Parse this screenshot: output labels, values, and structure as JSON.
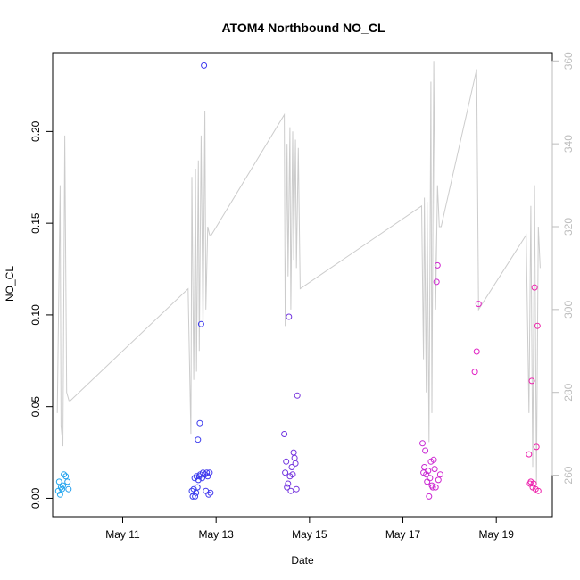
{
  "chart_data": {
    "type": "scatter",
    "title": "ATOM4 Northbound NO_CL",
    "xlabel": "Date",
    "ylabel": "NO_CL",
    "y2label": "",
    "x_tick_labels": [
      "May 11",
      "May 13",
      "May 15",
      "May 17",
      "May 19"
    ],
    "x_tick_dates": [
      11,
      13,
      15,
      17,
      19
    ],
    "x_range_days": [
      9.5,
      20.2
    ],
    "y_range": [
      -0.01,
      0.243
    ],
    "y_ticks": [
      0.0,
      0.05,
      0.1,
      0.15,
      0.2
    ],
    "y_tick_labels": [
      "0.00",
      "0.05",
      "0.10",
      "0.15",
      "0.20"
    ],
    "y2_range": [
      250,
      362
    ],
    "y2_ticks": [
      260,
      280,
      300,
      320,
      340,
      360
    ],
    "y2_tick_labels": [
      "260",
      "280",
      "300",
      "320",
      "340",
      "360"
    ],
    "grid": false,
    "colors": {
      "line": "#cccccc",
      "axis": "#000000",
      "right_axis": "#bdbdbd",
      "point_gradient": [
        "#22aaee",
        "#2255ee",
        "#4433ee",
        "#7733dd",
        "#aa33dd",
        "#dd22cc",
        "#ee22aa"
      ]
    },
    "series": [
      {
        "type": "points",
        "x_day": [
          9.62,
          9.64,
          9.66,
          9.68,
          9.7,
          9.72,
          9.74,
          9.78,
          9.82,
          9.84,
          12.48,
          12.5,
          12.52,
          12.54,
          12.55,
          12.57,
          12.58,
          12.6,
          12.61,
          12.62,
          12.64,
          12.65,
          12.66,
          12.68,
          12.7,
          12.72,
          12.74,
          12.76,
          12.78,
          12.8,
          12.82,
          12.84,
          12.86,
          12.88,
          14.46,
          14.48,
          14.5,
          14.52,
          14.54,
          14.56,
          14.58,
          14.6,
          14.62,
          14.64,
          14.66,
          14.68,
          14.7,
          14.72,
          14.74,
          17.42,
          17.44,
          17.46,
          17.48,
          17.5,
          17.52,
          17.54,
          17.56,
          17.58,
          17.6,
          17.62,
          17.64,
          17.66,
          17.68,
          17.7,
          17.72,
          17.74,
          17.76,
          17.8,
          18.54,
          18.58,
          18.62,
          19.7,
          19.72,
          19.74,
          19.76,
          19.78,
          19.8,
          19.82,
          19.84,
          19.86,
          19.88,
          19.9
        ],
        "y": [
          0.004,
          0.009,
          0.002,
          0.006,
          0.005,
          0.007,
          0.013,
          0.012,
          0.009,
          0.005,
          0.004,
          0.001,
          0.005,
          0.011,
          0.001,
          0.003,
          0.012,
          0.006,
          0.032,
          0.01,
          0.012,
          0.041,
          0.013,
          0.095,
          0.011,
          0.014,
          0.236,
          0.013,
          0.004,
          0.014,
          0.012,
          0.002,
          0.014,
          0.003,
          0.035,
          0.014,
          0.02,
          0.006,
          0.008,
          0.099,
          0.012,
          0.004,
          0.017,
          0.013,
          0.025,
          0.022,
          0.019,
          0.005,
          0.056,
          0.03,
          0.014,
          0.017,
          0.026,
          0.013,
          0.009,
          0.015,
          0.001,
          0.011,
          0.02,
          0.007,
          0.006,
          0.021,
          0.016,
          0.006,
          0.118,
          0.127,
          0.01,
          0.013,
          0.069,
          0.08,
          0.106,
          0.024,
          0.008,
          0.009,
          0.064,
          0.006,
          0.008,
          0.115,
          0.005,
          0.028,
          0.094,
          0.004
        ]
      },
      {
        "type": "line",
        "axis": "right",
        "x_day": [
          9.6,
          9.66,
          9.68,
          9.72,
          9.76,
          9.8,
          9.85,
          9.88,
          12.4,
          12.46,
          12.48,
          12.52,
          12.56,
          12.58,
          12.62,
          12.64,
          12.68,
          12.72,
          12.76,
          12.78,
          12.82,
          12.86,
          12.9,
          14.46,
          14.48,
          14.52,
          14.54,
          14.58,
          14.6,
          14.64,
          14.66,
          14.7,
          14.72,
          14.76,
          14.8,
          17.4,
          17.44,
          17.46,
          17.5,
          17.52,
          17.56,
          17.6,
          17.62,
          17.66,
          17.7,
          17.74,
          17.78,
          17.82,
          18.58,
          18.62,
          19.64,
          19.7,
          19.74,
          19.78,
          19.82,
          19.86,
          19.9,
          19.94
        ],
        "y": [
          275,
          330,
          272,
          267,
          342,
          280,
          278,
          278,
          305,
          270,
          332,
          283,
          334,
          285,
          336,
          290,
          342,
          295,
          348,
          300,
          320,
          318,
          318,
          347,
          296,
          340,
          308,
          344,
          300,
          343,
          312,
          341,
          310,
          339,
          305,
          325,
          288,
          327,
          280,
          326,
          268,
          355,
          275,
          360,
          300,
          330,
          320,
          320,
          358,
          300,
          318,
          275,
          325,
          262,
          330,
          258,
          320,
          310
        ]
      }
    ]
  }
}
